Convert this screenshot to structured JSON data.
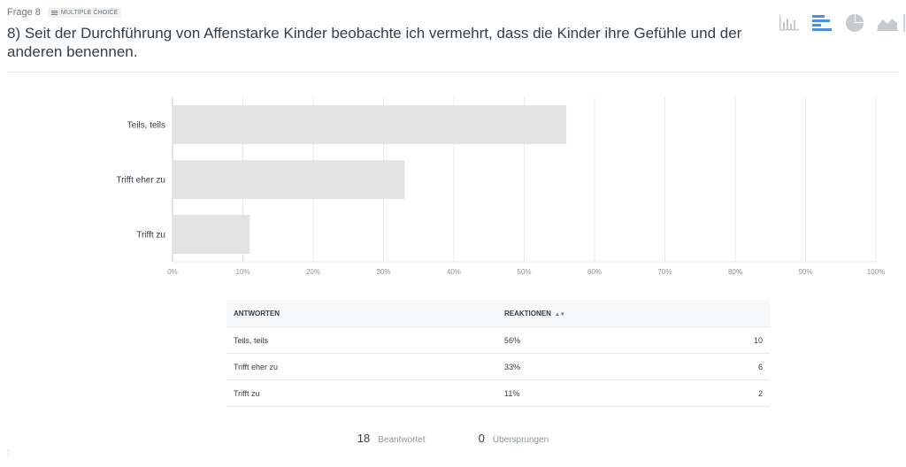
{
  "question": {
    "number_label": "Frage 8",
    "type_label": "MULTIPLE CHOICE",
    "title": "8) Seit der Durchführung von Affenstarke Kinder beobachte ich vermehrt, dass die Kinder ihre Gefühle und der anderen benennen."
  },
  "toolbar": {
    "items": [
      {
        "name": "vertical-bar-chart",
        "icon": "column-chart-icon",
        "active": false
      },
      {
        "name": "horizontal-bar-chart",
        "icon": "bar-chart-icon",
        "active": true
      },
      {
        "name": "pie-chart",
        "icon": "pie-chart-icon",
        "active": false
      },
      {
        "name": "area-chart",
        "icon": "area-chart-icon",
        "active": false
      }
    ],
    "active_color": "#4a90e2",
    "inactive_color": "#c5cbcf"
  },
  "chart_data": {
    "type": "bar",
    "orientation": "horizontal",
    "categories": [
      "Teils, teils",
      "Trifft eher zu",
      "Trifft zu"
    ],
    "values": [
      56,
      33,
      11
    ],
    "xlim": [
      0,
      100
    ],
    "xticks": [
      "0%",
      "10%",
      "20%",
      "30%",
      "40%",
      "50%",
      "60%",
      "70%",
      "80%",
      "90%",
      "100%"
    ],
    "grid": true,
    "bar_color": "#e3e3e3"
  },
  "table": {
    "headers": [
      "ANTWORTEN",
      "REAKTIONEN"
    ],
    "sort_icon": "sort-icon",
    "rows": [
      {
        "answer": "Teils, teils",
        "percent": "56%",
        "count": "10"
      },
      {
        "answer": "Trifft eher zu",
        "percent": "33%",
        "count": "6"
      },
      {
        "answer": "Trifft zu",
        "percent": "11%",
        "count": "2"
      }
    ]
  },
  "summary": {
    "answered_count": "18",
    "answered_label": "Beantwortet",
    "skipped_count": "0",
    "skipped_label": "Übersprungen"
  },
  "corner_mark": ":"
}
